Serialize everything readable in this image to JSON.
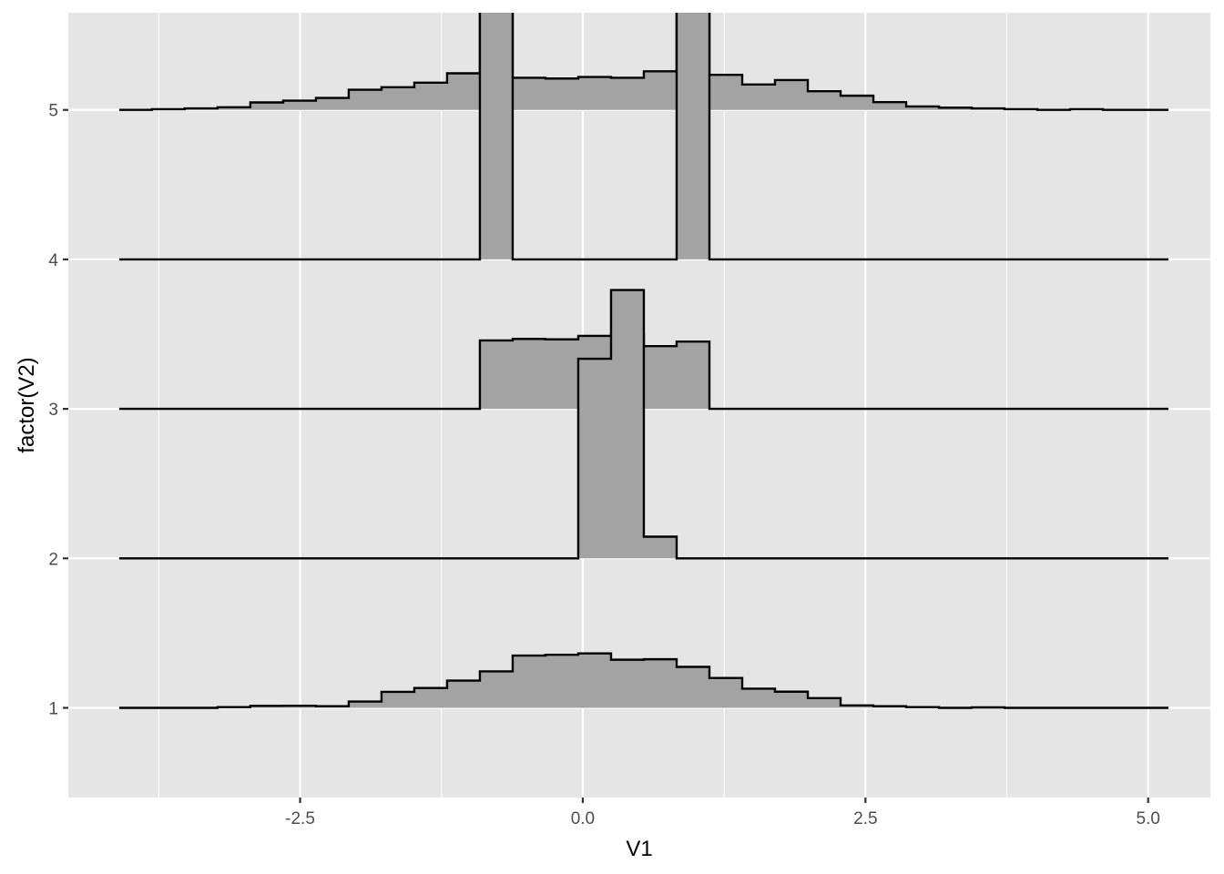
{
  "chart_data": {
    "type": "area",
    "subtype": "ridgeline-histogram",
    "xlabel": "V1",
    "ylabel": "factor(V2)",
    "x_ticks": [
      -2.5,
      0.0,
      2.5,
      5.0
    ],
    "x_tick_labels": [
      "-2.5",
      "0.0",
      "2.5",
      "5.0"
    ],
    "y_ticks": [
      1,
      2,
      3,
      4,
      5
    ],
    "y_tick_labels": [
      "1",
      "2",
      "3",
      "4",
      "5"
    ],
    "xlim": [
      -4.55,
      5.55
    ],
    "ylim": [
      0.4,
      5.65
    ],
    "grid": true,
    "legend": "none",
    "fill_color": "#a3a3a3",
    "line_color": "#000000",
    "panel_background": "#e5e5e5",
    "gridline_color": "#ffffff",
    "bin_edges": [
      -4.1,
      -3.81,
      -3.52,
      -3.23,
      -2.94,
      -2.65,
      -2.36,
      -2.07,
      -1.78,
      -1.49,
      -1.2,
      -0.91,
      -0.62,
      -0.33,
      -0.04,
      0.25,
      0.54,
      0.83,
      1.12,
      1.41,
      1.7,
      1.99,
      2.28,
      2.57,
      2.86,
      3.15,
      3.44,
      3.73,
      4.02,
      4.31,
      4.6,
      4.89,
      5.18
    ],
    "series": [
      {
        "group": 1,
        "baseline": 1,
        "heights": [
          0,
          0,
          0,
          0.005,
          0.013,
          0.014,
          0.011,
          0.042,
          0.107,
          0.133,
          0.182,
          0.244,
          0.35,
          0.355,
          0.364,
          0.322,
          0.325,
          0.274,
          0.2,
          0.128,
          0.108,
          0.065,
          0.016,
          0.011,
          0.005,
          0,
          0.003,
          0,
          0,
          0,
          0,
          0
        ]
      },
      {
        "group": 2,
        "baseline": 2,
        "heights": [
          0,
          0,
          0,
          0,
          0,
          0,
          0,
          0,
          0,
          0,
          0,
          0,
          0,
          0,
          1.335,
          1.795,
          0.145,
          0,
          0,
          0,
          0,
          0,
          0,
          0,
          0,
          0,
          0,
          0,
          0,
          0,
          0,
          0
        ]
      },
      {
        "group": 3,
        "baseline": 3,
        "heights": [
          0,
          0,
          0,
          0,
          0,
          0,
          0,
          0,
          0,
          0,
          0,
          0.458,
          0.468,
          0.465,
          0.488,
          0.5,
          0.42,
          0.45,
          0,
          0,
          0,
          0,
          0,
          0,
          0,
          0,
          0,
          0,
          0,
          0,
          0,
          0
        ]
      },
      {
        "group": 4,
        "baseline": 4,
        "heights": [
          0,
          0,
          0,
          0,
          0,
          0,
          0,
          0,
          0,
          0,
          0,
          1.7,
          0,
          0,
          0,
          0,
          0,
          1.7,
          0,
          0,
          0,
          0,
          0,
          0,
          0,
          0,
          0,
          0,
          0,
          0,
          0,
          0
        ]
      },
      {
        "group": 5,
        "baseline": 5,
        "heights": [
          0,
          0.005,
          0.01,
          0.018,
          0.05,
          0.062,
          0.08,
          0.135,
          0.152,
          0.182,
          0.245,
          1.7,
          0.215,
          0.21,
          0.22,
          0.215,
          0.258,
          1.7,
          0.235,
          0.17,
          0.2,
          0.125,
          0.095,
          0.052,
          0.023,
          0.015,
          0.01,
          0.005,
          0,
          0.005,
          0,
          0
        ]
      }
    ]
  }
}
